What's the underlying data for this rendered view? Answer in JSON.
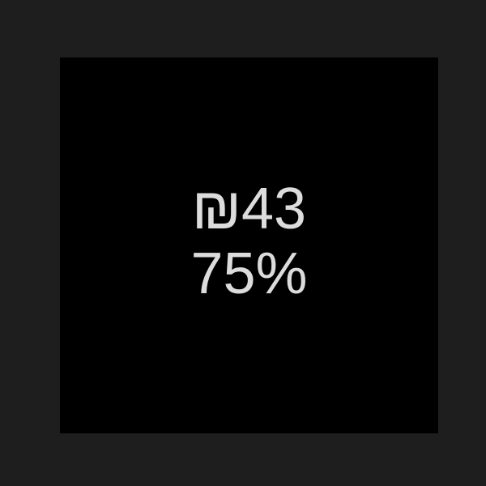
{
  "display": {
    "price": "₪43",
    "percent": "75%"
  },
  "colors": {
    "outer_background": "#1e1e1e",
    "panel_background": "#000000",
    "text": "#dcdcdc"
  }
}
